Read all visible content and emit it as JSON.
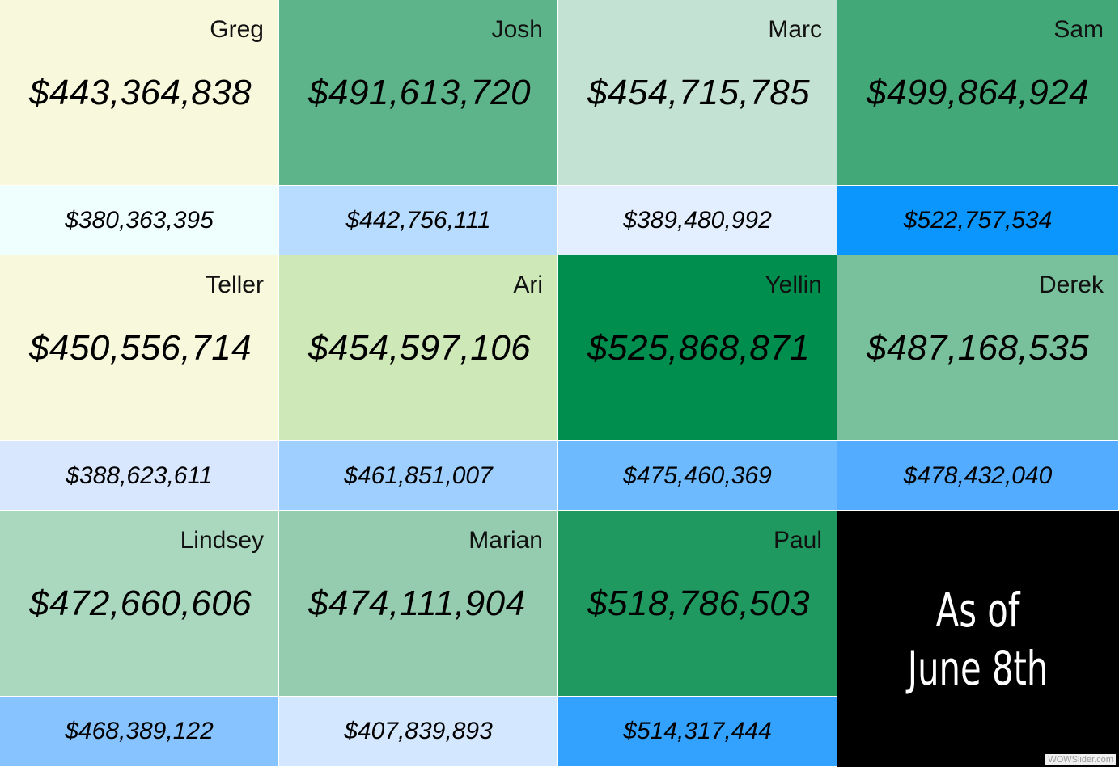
{
  "colors": {
    "greg_top": "#f8f9dc",
    "josh_top": "#5db48a",
    "marc_top": "#c4e2d4",
    "sam_top": "#42a878",
    "greg_bottom": "#eefffe",
    "josh_bottom": "#b7dcff",
    "marc_bottom": "#e3effe",
    "sam_bottom": "#0a96fc",
    "teller_top": "#f8f9dc",
    "ari_top": "#cfe8b7",
    "yellin_top": "#008e4f",
    "derek_top": "#79c09c",
    "teller_bottom": "#d8e6fe",
    "ari_bottom": "#9ecfff",
    "yellin_bottom": "#6dbaff",
    "derek_bottom": "#53acff",
    "lindsey_top": "#a9d8bf",
    "marian_top": "#95cbae",
    "paul_top": "#1f9960",
    "lindsey_bottom": "#86c3ff",
    "marian_bottom": "#d3e8ff",
    "paul_bottom": "#33a2ff"
  },
  "cells": [
    {
      "name": "Greg",
      "main": "$443,364,838",
      "secondary": "$380,363,395"
    },
    {
      "name": "Josh",
      "main": "$491,613,720",
      "secondary": "$442,756,111"
    },
    {
      "name": "Marc",
      "main": "$454,715,785",
      "secondary": "$389,480,992"
    },
    {
      "name": "Sam",
      "main": "$499,864,924",
      "secondary": "$522,757,534"
    },
    {
      "name": "Teller",
      "main": "$450,556,714",
      "secondary": "$388,623,611"
    },
    {
      "name": "Ari",
      "main": "$454,597,106",
      "secondary": "$461,851,007"
    },
    {
      "name": "Yellin",
      "main": "$525,868,871",
      "secondary": "$475,460,369"
    },
    {
      "name": "Derek",
      "main": "$487,168,535",
      "secondary": "$478,432,040"
    },
    {
      "name": "Lindsey",
      "main": "$472,660,606",
      "secondary": "$468,389,122"
    },
    {
      "name": "Marian",
      "main": "$474,111,904",
      "secondary": "$407,839,893"
    },
    {
      "name": "Paul",
      "main": "$518,786,503",
      "secondary": "$514,317,444"
    }
  ],
  "note": {
    "line1": "As of",
    "line2": "June 8th"
  },
  "watermark": "WOWSlider.com"
}
